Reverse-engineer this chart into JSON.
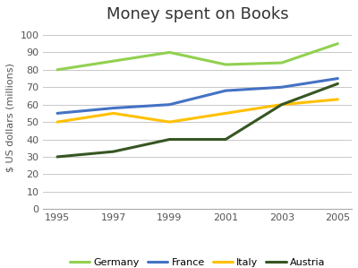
{
  "title": "Money spent on Books",
  "ylabel": "$ US dollars (millions)",
  "years": [
    1995,
    1997,
    1999,
    2001,
    2003,
    2005
  ],
  "series": {
    "Germany": [
      80,
      85,
      90,
      83,
      84,
      95
    ],
    "France": [
      55,
      58,
      60,
      68,
      70,
      75
    ],
    "Italy": [
      50,
      55,
      50,
      55,
      60,
      63
    ],
    "Austria": [
      30,
      33,
      40,
      40,
      60,
      72
    ]
  },
  "colors": {
    "Germany": "#92d050",
    "France": "#4472c4",
    "Italy": "#ffc000",
    "Austria": "#375623"
  },
  "ylim": [
    0,
    105
  ],
  "yticks": [
    0,
    10,
    20,
    30,
    40,
    50,
    60,
    70,
    80,
    90,
    100
  ],
  "background_color": "#ffffff",
  "grid_color": "#c8c8c8",
  "title_fontsize": 13,
  "label_fontsize": 8,
  "tick_fontsize": 8,
  "legend_fontsize": 8,
  "linewidth": 2.2
}
